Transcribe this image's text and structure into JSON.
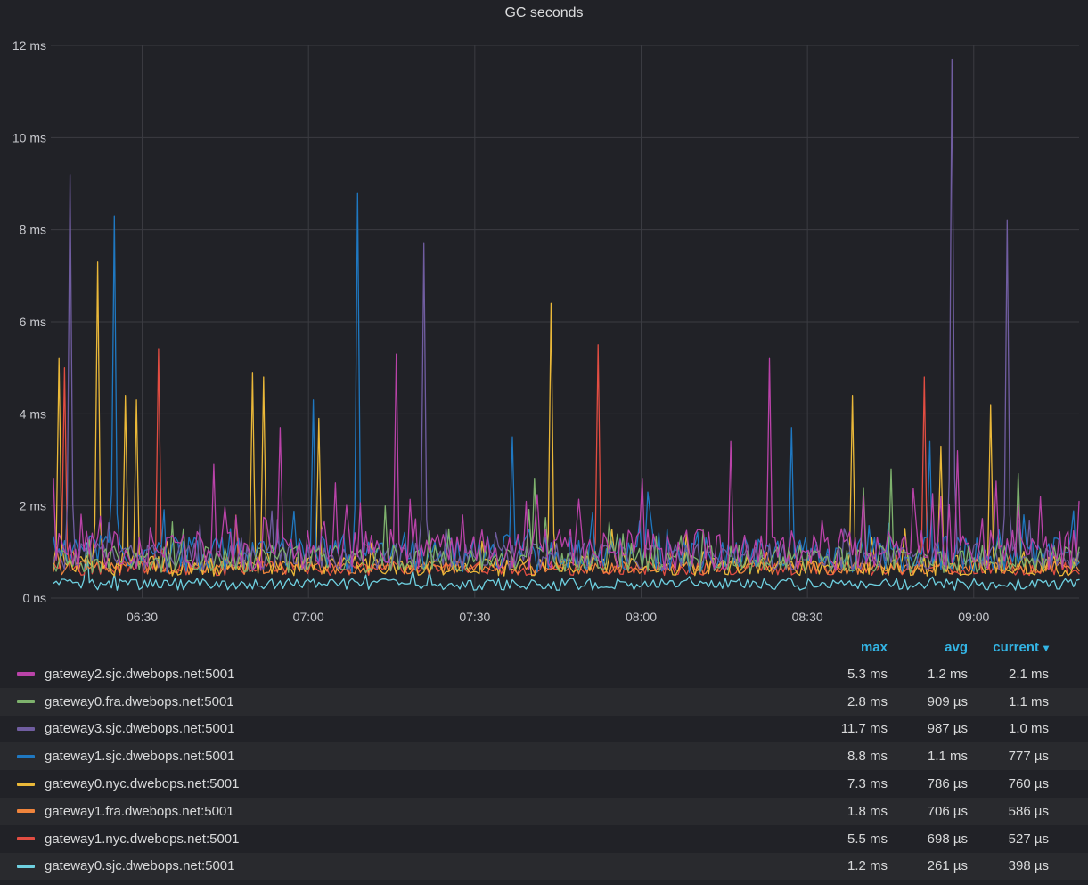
{
  "panel": {
    "title": "GC seconds"
  },
  "legend": {
    "headers": {
      "max": "max",
      "avg": "avg",
      "current": "current"
    },
    "sorted_by": "current",
    "sort_caret": "▾"
  },
  "colors": {
    "background": "#212227",
    "legend_stripe": "#292A2E",
    "grid": "#3B3C42",
    "axis_text": "#C8C9CE",
    "accent": "#33B5E5",
    "text": "#D8D9DA"
  },
  "chart_data": {
    "type": "line",
    "title": "GC seconds",
    "y_axis": {
      "unit": "ms",
      "ylim": [
        0,
        12
      ],
      "grid": true,
      "ticks": [
        {
          "v": 0,
          "label": "0 ns"
        },
        {
          "v": 2,
          "label": "2 ms"
        },
        {
          "v": 4,
          "label": "4 ms"
        },
        {
          "v": 6,
          "label": "6 ms"
        },
        {
          "v": 8,
          "label": "8 ms"
        },
        {
          "v": 10,
          "label": "10 ms"
        },
        {
          "v": 12,
          "label": "12 ms"
        }
      ]
    },
    "x_axis": {
      "start": "06:14",
      "end": "09:19",
      "ticks": [
        "06:30",
        "07:00",
        "07:30",
        "08:00",
        "08:30",
        "09:00"
      ]
    },
    "legend_position": "bottom",
    "series": [
      {
        "name": "gateway2.sjc.dwebops.net:5001",
        "color": "#BA43A9",
        "max": "5.3 ms",
        "avg": "1.2 ms",
        "current": "2.1 ms",
        "max_ms": 5.3,
        "avg_ms": 1.2,
        "current_ms": 2.1,
        "baseline_ms": 1.05,
        "noise_ms": 0.45,
        "burst_ms": 1.2,
        "burst_p": 0.1,
        "min_ms": 0.5,
        "seed": 11,
        "spikes": [
          [
            "06:14",
            2.6
          ],
          [
            "06:43",
            2.9
          ],
          [
            "06:55",
            3.7
          ],
          [
            "07:05",
            2.5
          ],
          [
            "07:16",
            5.3
          ],
          [
            "08:00",
            2.6
          ],
          [
            "08:16",
            3.4
          ],
          [
            "08:23",
            5.2
          ],
          [
            "08:57",
            3.2
          ],
          [
            "09:12",
            2.2
          ]
        ]
      },
      {
        "name": "gateway0.fra.dwebops.net:5001",
        "color": "#7EB26D",
        "max": "2.8 ms",
        "avg": "909 µs",
        "current": "1.1 ms",
        "max_ms": 2.8,
        "avg_ms": 0.909,
        "current_ms": 1.1,
        "baseline_ms": 0.85,
        "noise_ms": 0.3,
        "burst_ms": 0.9,
        "burst_p": 0.06,
        "min_ms": 0.4,
        "seed": 22,
        "spikes": [
          [
            "07:14",
            2.0
          ],
          [
            "07:41",
            2.6
          ],
          [
            "08:40",
            2.4
          ],
          [
            "08:45",
            2.8
          ],
          [
            "09:08",
            2.7
          ]
        ]
      },
      {
        "name": "gateway3.sjc.dwebops.net:5001",
        "color": "#705DA0",
        "max": "11.7 ms",
        "avg": "987 µs",
        "current": "1.0 ms",
        "max_ms": 11.7,
        "avg_ms": 0.987,
        "current_ms": 1.0,
        "baseline_ms": 0.9,
        "noise_ms": 0.3,
        "burst_ms": 0.8,
        "burst_p": 0.05,
        "min_ms": 0.45,
        "seed": 33,
        "spikes": [
          [
            "06:17",
            9.2
          ],
          [
            "07:21",
            7.7
          ],
          [
            "08:56",
            11.7
          ],
          [
            "09:06",
            8.2
          ]
        ]
      },
      {
        "name": "gateway1.sjc.dwebops.net:5001",
        "color": "#1F78C1",
        "max": "8.8 ms",
        "avg": "1.1 ms",
        "current": "777 µs",
        "max_ms": 8.8,
        "avg_ms": 1.1,
        "current_ms": 0.777,
        "baseline_ms": 0.95,
        "noise_ms": 0.4,
        "burst_ms": 1.0,
        "burst_p": 0.08,
        "min_ms": 0.4,
        "seed": 44,
        "spikes": [
          [
            "06:25",
            8.3
          ],
          [
            "07:01",
            4.3
          ],
          [
            "07:09",
            8.8
          ],
          [
            "07:37",
            3.5
          ],
          [
            "08:01",
            2.3
          ],
          [
            "08:27",
            3.7
          ],
          [
            "08:52",
            3.4
          ]
        ]
      },
      {
        "name": "gateway0.nyc.dwebops.net:5001",
        "color": "#EAB839",
        "max": "7.3 ms",
        "avg": "786 µs",
        "current": "760 µs",
        "max_ms": 7.3,
        "avg_ms": 0.786,
        "current_ms": 0.76,
        "baseline_ms": 0.7,
        "noise_ms": 0.22,
        "burst_ms": 0.8,
        "burst_p": 0.06,
        "min_ms": 0.38,
        "seed": 55,
        "spikes": [
          [
            "06:15",
            5.2
          ],
          [
            "06:22",
            7.3
          ],
          [
            "06:27",
            4.4
          ],
          [
            "06:29",
            4.3
          ],
          [
            "06:50",
            4.9
          ],
          [
            "06:52",
            4.8
          ],
          [
            "07:02",
            3.9
          ],
          [
            "07:44",
            6.4
          ],
          [
            "08:38",
            4.4
          ],
          [
            "08:54",
            3.3
          ],
          [
            "09:03",
            4.2
          ]
        ]
      },
      {
        "name": "gateway1.fra.dwebops.net:5001",
        "color": "#EF843C",
        "max": "1.8 ms",
        "avg": "706 µs",
        "current": "586 µs",
        "max_ms": 1.8,
        "avg_ms": 0.706,
        "current_ms": 0.586,
        "baseline_ms": 0.66,
        "noise_ms": 0.15,
        "burst_ms": 0.35,
        "burst_p": 0.05,
        "min_ms": 0.4,
        "seed": 66,
        "spikes": [
          [
            "06:47",
            1.8
          ]
        ]
      },
      {
        "name": "gateway1.nyc.dwebops.net:5001",
        "color": "#E24D42",
        "max": "5.5 ms",
        "avg": "698 µs",
        "current": "527 µs",
        "max_ms": 5.5,
        "avg_ms": 0.698,
        "current_ms": 0.527,
        "baseline_ms": 0.64,
        "noise_ms": 0.15,
        "burst_ms": 0.4,
        "burst_p": 0.05,
        "min_ms": 0.38,
        "seed": 77,
        "spikes": [
          [
            "06:16",
            5.0
          ],
          [
            "06:33",
            5.4
          ],
          [
            "07:52",
            5.5
          ],
          [
            "08:51",
            4.8
          ]
        ]
      },
      {
        "name": "gateway0.sjc.dwebops.net:5001",
        "color": "#6ED0E0",
        "max": "1.2 ms",
        "avg": "261 µs",
        "current": "398 µs",
        "max_ms": 1.2,
        "avg_ms": 0.261,
        "current_ms": 0.398,
        "baseline_ms": 0.3,
        "noise_ms": 0.13,
        "burst_ms": 0.25,
        "burst_p": 0.04,
        "min_ms": 0.12,
        "seed": 88,
        "spikes": [
          [
            "06:20",
            1.2
          ]
        ]
      }
    ]
  }
}
